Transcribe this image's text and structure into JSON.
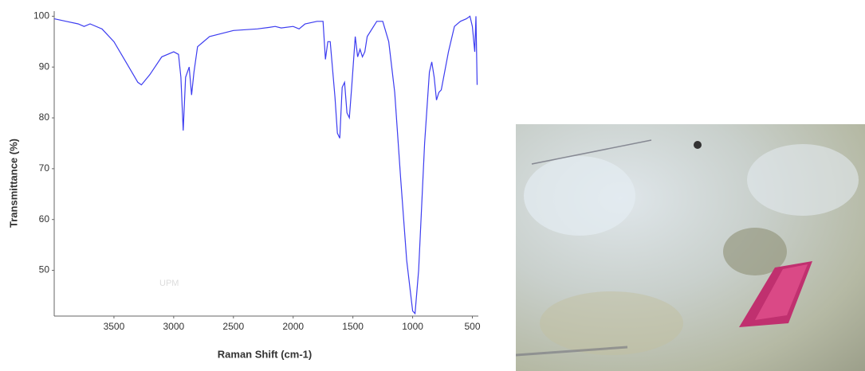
{
  "chart_data": {
    "type": "line",
    "ylabel": "Transmittance (%)",
    "xlabel": "Raman Shift (cm-1)",
    "annotation": "UPM",
    "xlim": [
      4000,
      450
    ],
    "ylim": [
      41,
      101
    ],
    "xticks": [
      3500,
      3000,
      2500,
      2000,
      1500,
      1000,
      500
    ],
    "yticks": [
      50,
      60,
      70,
      80,
      90,
      100
    ],
    "series": [
      {
        "color": "#3c3cf0",
        "x": [
          4000,
          3900,
          3800,
          3750,
          3700,
          3600,
          3500,
          3400,
          3300,
          3270,
          3200,
          3100,
          3000,
          2960,
          2940,
          2920,
          2900,
          2870,
          2850,
          2830,
          2800,
          2700,
          2500,
          2300,
          2200,
          2150,
          2100,
          2000,
          1950,
          1900,
          1800,
          1750,
          1730,
          1710,
          1690,
          1650,
          1630,
          1610,
          1590,
          1570,
          1550,
          1530,
          1510,
          1480,
          1460,
          1440,
          1420,
          1400,
          1380,
          1300,
          1250,
          1200,
          1150,
          1100,
          1050,
          1000,
          980,
          950,
          900,
          860,
          840,
          820,
          800,
          780,
          760,
          700,
          650,
          600,
          550,
          520,
          500,
          480,
          470,
          460
        ],
        "values": [
          99.5,
          99,
          98.5,
          98,
          98.5,
          97.5,
          95,
          91,
          87,
          86.5,
          88.5,
          92,
          93,
          92.5,
          88,
          77.5,
          88,
          90,
          84.5,
          89,
          94,
          96,
          97.2,
          97.5,
          97.8,
          98,
          97.7,
          98,
          97.5,
          98.5,
          99,
          99,
          91.5,
          95,
          95,
          84,
          77,
          76,
          86,
          87,
          81,
          80,
          86,
          96,
          92,
          93.5,
          92,
          93,
          96,
          99,
          99,
          95,
          85,
          68,
          52,
          42,
          41.5,
          50,
          75,
          89,
          91,
          88,
          83.5,
          85,
          85.5,
          93,
          98,
          99,
          99.5,
          100,
          98,
          93,
          100,
          86.5
        ]
      }
    ]
  }
}
